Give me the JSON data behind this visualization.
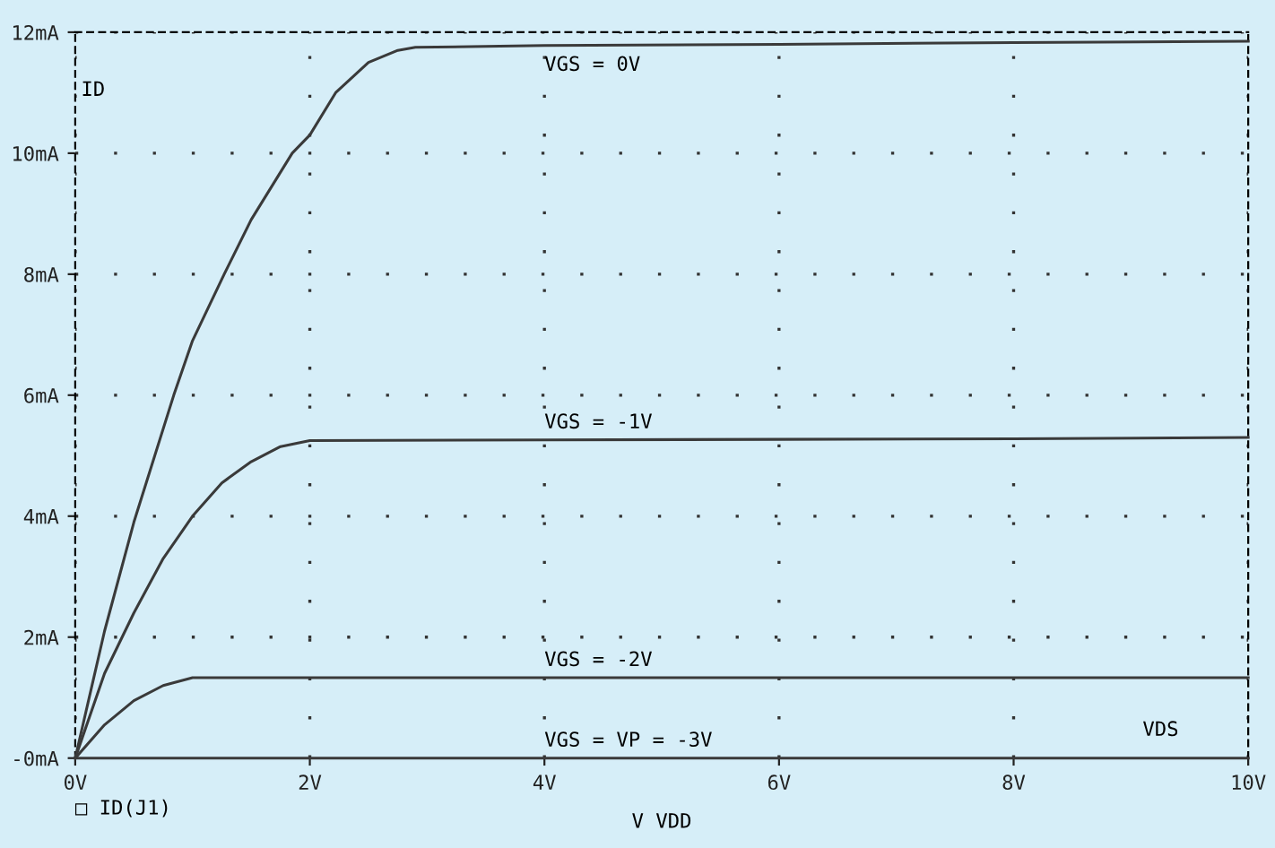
{
  "chart_data": {
    "type": "line",
    "xlabel": "V VDD",
    "ylabel": "ID",
    "series": [
      {
        "name": "VGS = 0V",
        "color": "#3a3a3a",
        "x": [
          0,
          0.25,
          0.5,
          0.84,
          1.0,
          1.27,
          1.5,
          1.85,
          2.0,
          2.22,
          2.5,
          2.75,
          2.9,
          4,
          6,
          8,
          10
        ],
        "values": [
          0,
          2.1,
          3.9,
          6.0,
          6.9,
          8.0,
          8.9,
          10.0,
          10.3,
          11.0,
          11.5,
          11.7,
          11.75,
          11.78,
          11.8,
          11.83,
          11.85
        ]
      },
      {
        "name": "VGS = -1V",
        "color": "#3a3a3a",
        "x": [
          0,
          0.25,
          0.4,
          0.5,
          0.75,
          1.0,
          1.25,
          1.5,
          1.75,
          2.0,
          4,
          6,
          8,
          10
        ],
        "values": [
          0,
          1.4,
          2.0,
          2.4,
          3.3,
          4.0,
          4.55,
          4.9,
          5.15,
          5.25,
          5.26,
          5.27,
          5.28,
          5.3
        ]
      },
      {
        "name": "VGS = -2V",
        "color": "#3a3a3a",
        "x": [
          0,
          0.25,
          0.5,
          0.75,
          1.0,
          4,
          6,
          8,
          10
        ],
        "values": [
          0,
          0.55,
          0.95,
          1.2,
          1.33,
          1.33,
          1.33,
          1.33,
          1.33
        ]
      },
      {
        "name": "VGS = VP = -3V",
        "color": "#3a3a3a",
        "x": [
          0,
          2,
          4,
          6,
          8,
          10
        ],
        "values": [
          0,
          0,
          0,
          0,
          0,
          0
        ]
      }
    ],
    "xlim": [
      0,
      10
    ],
    "ylim": [
      0,
      12
    ],
    "xticks": [
      {
        "value": 0,
        "label": "0V"
      },
      {
        "value": 2,
        "label": "2V"
      },
      {
        "value": 4,
        "label": "4V"
      },
      {
        "value": 6,
        "label": "6V"
      },
      {
        "value": 8,
        "label": "8V"
      },
      {
        "value": 10,
        "label": "10V"
      }
    ],
    "yticks": [
      {
        "value": 0,
        "label": "-0mA"
      },
      {
        "value": 2,
        "label": "2mA"
      },
      {
        "value": 4,
        "label": "4mA"
      },
      {
        "value": 6,
        "label": "6mA"
      },
      {
        "value": 8,
        "label": "8mA"
      },
      {
        "value": 10,
        "label": "10mA"
      },
      {
        "value": 12,
        "label": "12mA"
      }
    ],
    "grid": true,
    "line_style": "solid",
    "annotations": [
      "VDS",
      "□ ID(J1)"
    ]
  }
}
